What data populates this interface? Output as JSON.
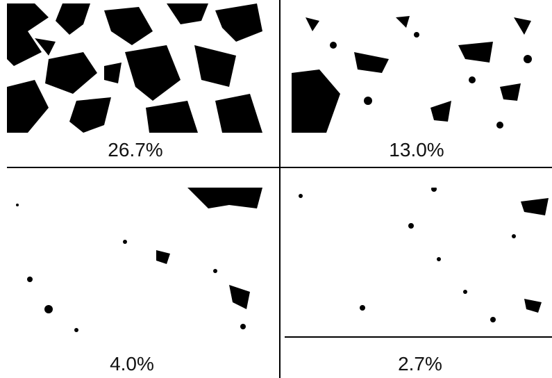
{
  "panels": [
    {
      "caption": "26.7%",
      "fraction": 0.267
    },
    {
      "caption": "13.0%",
      "fraction": 0.13
    },
    {
      "caption": "4.0%",
      "fraction": 0.04
    },
    {
      "caption": "2.7%",
      "fraction": 0.027
    }
  ],
  "colors": {
    "background": "#ffffff",
    "pores": "#000000"
  }
}
